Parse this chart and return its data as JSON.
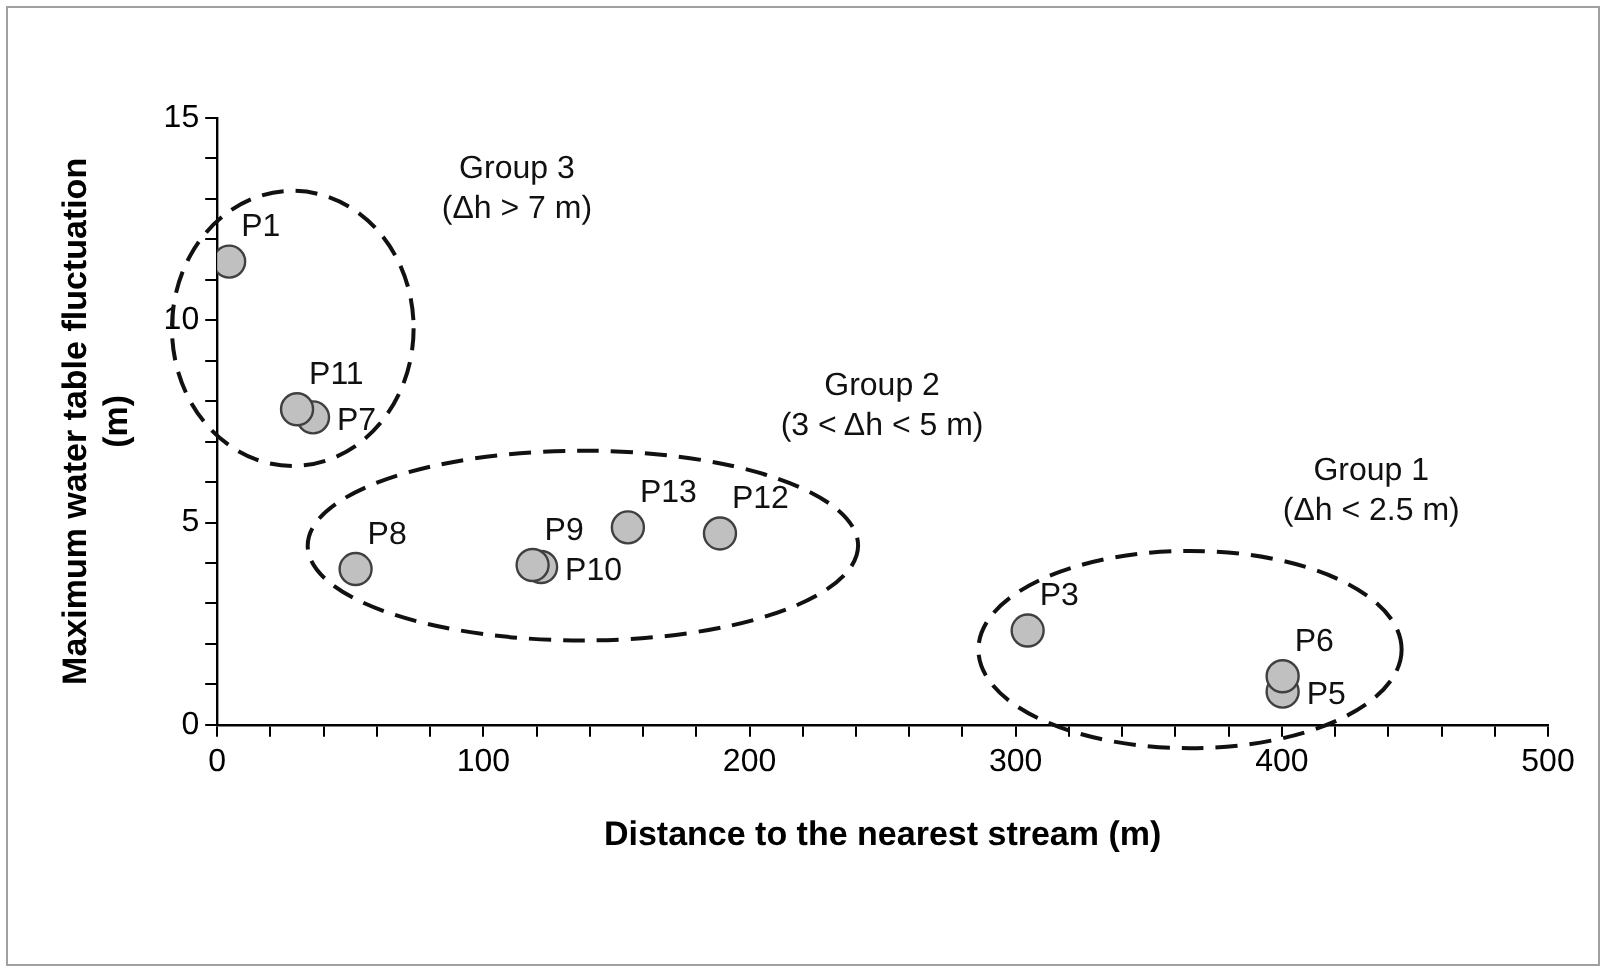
{
  "chart_data": {
    "type": "scatter",
    "xlabel": "Distance to the nearest stream (m)",
    "ylabel": "Maximum water table fluctuation (m)",
    "x": [
      4.5,
      30,
      36,
      52,
      118.5,
      121.7,
      154.3,
      188.9,
      304.5,
      400.3,
      400.3
    ],
    "values": [
      11.45,
      7.8,
      7.6,
      3.85,
      3.95,
      3.9,
      4.88,
      4.73,
      2.33,
      1.2,
      0.82
    ],
    "color": "#c0c0c0",
    "marker": "circle",
    "legend": false,
    "grid": false,
    "xlim": [
      0,
      500
    ],
    "ylim": [
      0,
      15
    ],
    "xticks": [
      0,
      {
        "value": 20,
        "label": null
      },
      {
        "value": 40,
        "label": null
      },
      {
        "value": 60,
        "label": null
      },
      {
        "value": 80,
        "label": null
      },
      100,
      {
        "value": 120,
        "label": null
      },
      {
        "value": 140,
        "label": null
      },
      {
        "value": 160,
        "label": null
      },
      {
        "value": 180,
        "label": null
      },
      200,
      {
        "value": 220,
        "label": null
      },
      {
        "value": 240,
        "label": null
      },
      {
        "value": 260,
        "label": null
      },
      {
        "value": 280,
        "label": null
      },
      300,
      {
        "value": 320,
        "label": null
      },
      {
        "value": 340,
        "label": null
      },
      {
        "value": 360,
        "label": null
      },
      {
        "value": 380,
        "label": null
      },
      400,
      {
        "value": 420,
        "label": null
      },
      {
        "value": 440,
        "label": null
      },
      {
        "value": 460,
        "label": null
      },
      {
        "value": 480,
        "label": null
      },
      500
    ],
    "yticks": [
      0,
      {
        "value": 1,
        "label": null
      },
      {
        "value": 2,
        "label": null
      },
      {
        "value": 3,
        "label": null
      },
      {
        "value": 4,
        "label": null
      },
      5,
      {
        "value": 6,
        "label": null
      },
      {
        "value": 7,
        "label": null
      },
      {
        "value": 8,
        "label": null
      },
      {
        "value": 9,
        "label": null
      },
      10,
      {
        "value": 11,
        "label": null
      },
      {
        "value": 12,
        "label": null
      },
      {
        "value": 13,
        "label": null
      },
      {
        "value": 14,
        "label": null
      },
      15
    ],
    "annotations": [
      {
        "text": "P1",
        "x": 4.5,
        "y": 11.45
      },
      {
        "text": "P11",
        "x": 30,
        "y": 7.8
      },
      {
        "text": "P7",
        "x": 36,
        "y": 7.6
      },
      {
        "text": "P8",
        "x": 52,
        "y": 3.85
      },
      {
        "text": "P9",
        "x": 118.5,
        "y": 3.95
      },
      {
        "text": "P10",
        "x": 121.7,
        "y": 3.9
      },
      {
        "text": "P13",
        "x": 154.3,
        "y": 4.88
      },
      {
        "text": "P12",
        "x": 188.9,
        "y": 4.73
      },
      {
        "text": "P3",
        "x": 304.5,
        "y": 2.33
      },
      {
        "text": "P6",
        "x": 400.3,
        "y": 1.2
      },
      {
        "text": "P5",
        "x": 400.3,
        "y": 0.82
      },
      "Group 3\n(Δh > 7 m)",
      "Group 2\n(3 < Δh < 5 m)",
      "Group 1\n(Δh < 2.5 m)"
    ]
  }
}
